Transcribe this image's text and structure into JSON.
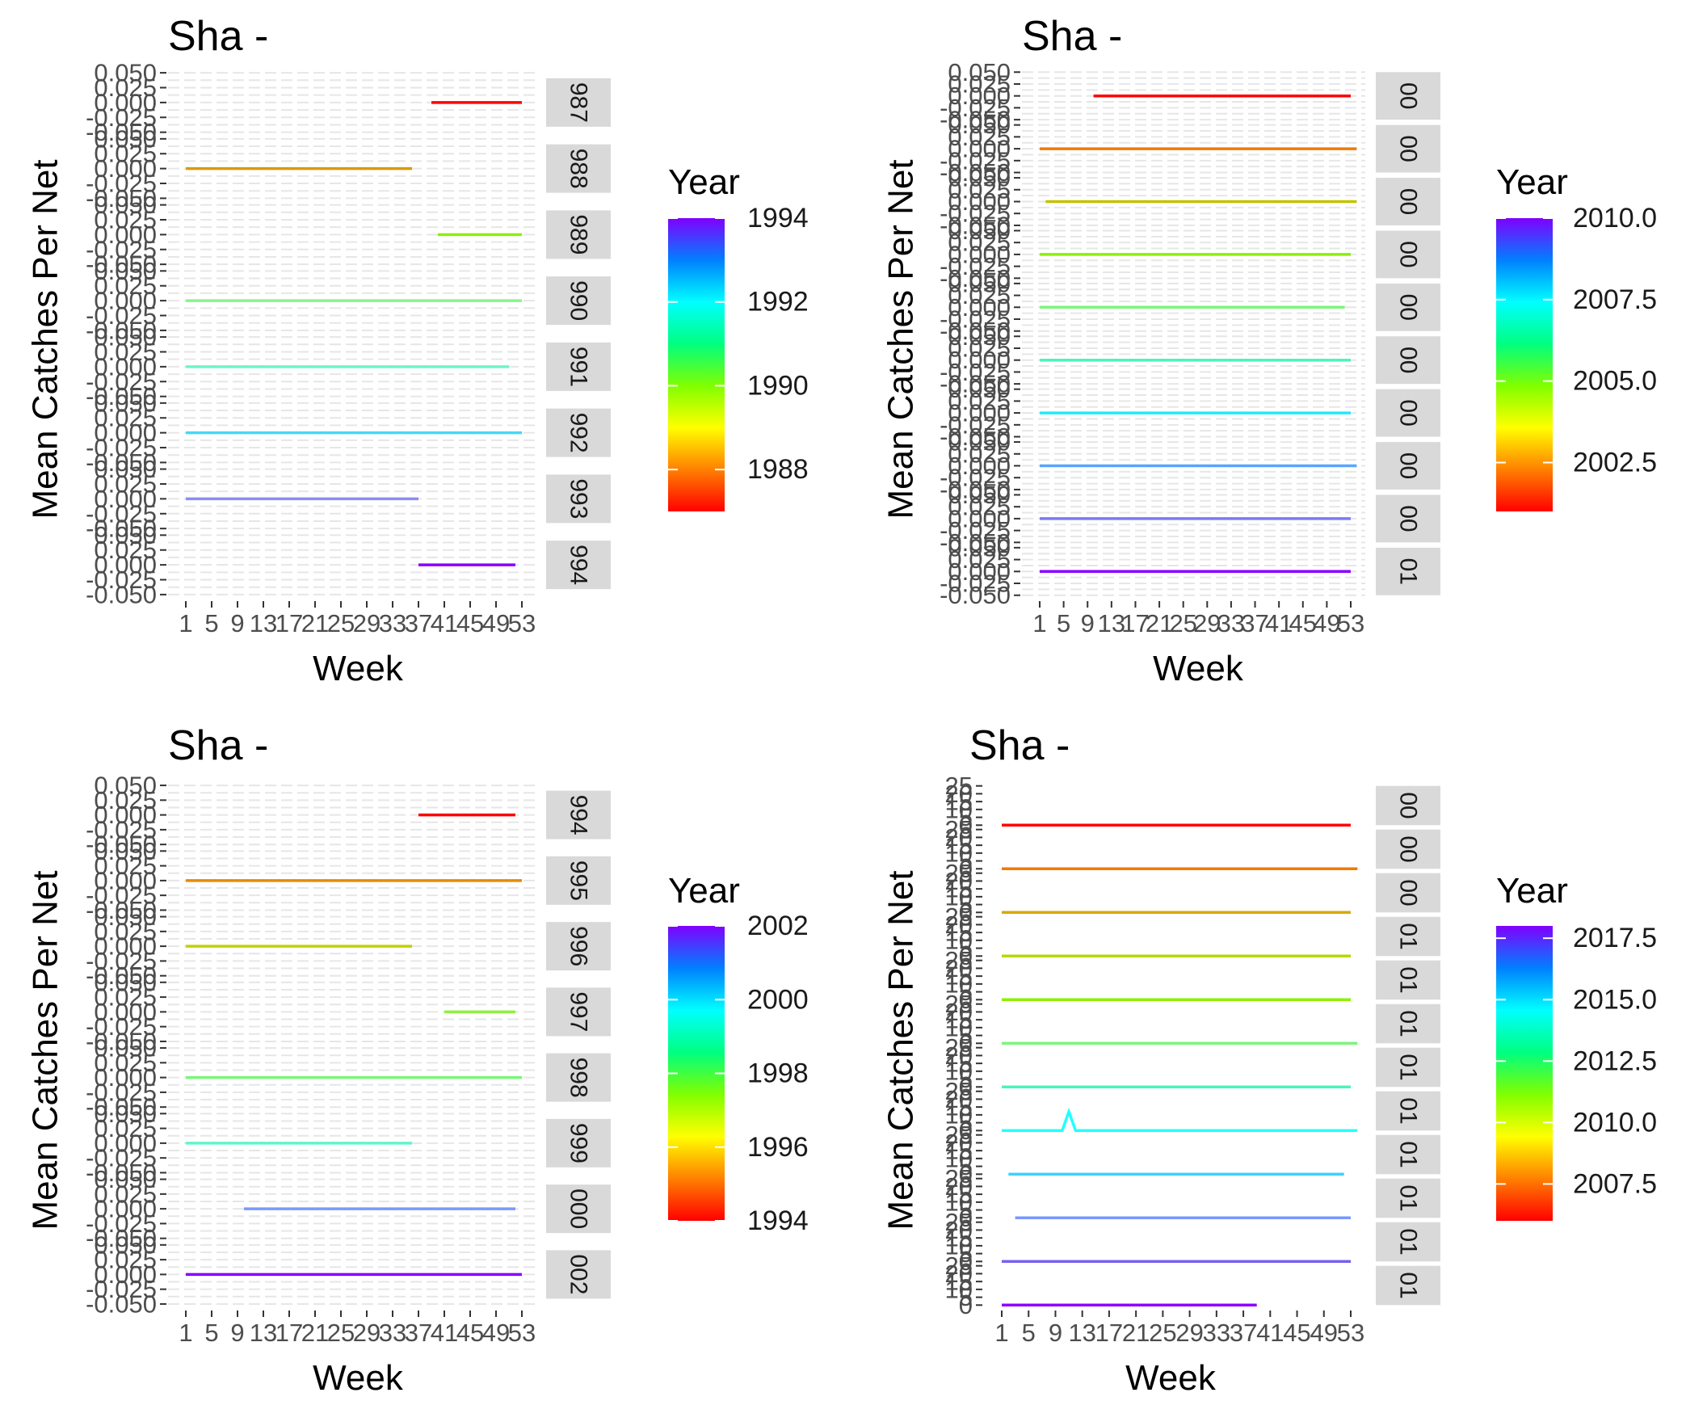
{
  "chart_data": [
    {
      "type": "line",
      "title": "Sha -",
      "xlabel": "Week",
      "ylabel": "Mean Catches Per Net",
      "x_ticks": [
        1,
        5,
        9,
        13,
        17,
        21,
        25,
        29,
        33,
        37,
        41,
        45,
        49,
        53
      ],
      "xlim": [
        1,
        53
      ],
      "y_ticks": [
        -0.05,
        -0.025,
        0.0,
        0.025,
        0.05
      ],
      "y_tick_labels": [
        "-0.050",
        "-0.025",
        "0.000",
        "0.025",
        "0.050"
      ],
      "ylim": [
        -0.05,
        0.05
      ],
      "grid": true,
      "legend": {
        "title": "Year",
        "type": "colorbar",
        "placement": "right",
        "breaks": [
          "1994",
          "1992",
          "1990",
          "1988"
        ],
        "break_values": [
          1994,
          1992,
          1990,
          1988
        ],
        "range": [
          1987,
          1994
        ]
      },
      "series": [
        {
          "strip": "987",
          "year": 1987,
          "color": "#ff0000",
          "x": [
            39,
            53
          ],
          "y": [
            0,
            0
          ]
        },
        {
          "strip": "988",
          "year": 1988,
          "color": "#db9a00",
          "x": [
            1,
            36
          ],
          "y": [
            0,
            0
          ]
        },
        {
          "strip": "989",
          "year": 1989,
          "color": "#8df000",
          "x": [
            40,
            53
          ],
          "y": [
            0,
            0
          ]
        },
        {
          "strip": "990",
          "year": 1990,
          "color": "#88f58a",
          "x": [
            1,
            53
          ],
          "y": [
            0,
            0
          ]
        },
        {
          "strip": "991",
          "year": 1991,
          "color": "#6cf5c9",
          "x": [
            1,
            51
          ],
          "y": [
            0,
            0
          ]
        },
        {
          "strip": "992",
          "year": 1992,
          "color": "#47d8f5",
          "x": [
            1,
            53
          ],
          "y": [
            0,
            0
          ]
        },
        {
          "strip": "993",
          "year": 1993,
          "color": "#8c8cf5",
          "x": [
            1,
            37
          ],
          "y": [
            0,
            0
          ]
        },
        {
          "strip": "994",
          "year": 1994,
          "color": "#8c00ff",
          "x": [
            37,
            52
          ],
          "y": [
            0,
            0
          ]
        }
      ]
    },
    {
      "type": "line",
      "title": "Sha -",
      "xlabel": "Week",
      "ylabel": "Mean Catches Per Net",
      "x_ticks": [
        1,
        5,
        9,
        13,
        17,
        21,
        25,
        29,
        33,
        37,
        41,
        45,
        49,
        53
      ],
      "xlim": [
        1,
        53
      ],
      "y_ticks": [
        -0.05,
        -0.025,
        0.0,
        0.025,
        0.05
      ],
      "y_tick_labels": [
        "-0.050",
        "-0.025",
        "0.000",
        "0.025",
        "0.050"
      ],
      "ylim": [
        -0.05,
        0.05
      ],
      "grid": true,
      "legend": {
        "title": "Year",
        "type": "colorbar",
        "placement": "right",
        "breaks": [
          "2010.0",
          "2007.5",
          "2005.0",
          "2002.5"
        ],
        "break_values": [
          2010,
          2007.5,
          2005,
          2002.5
        ],
        "range": [
          2001,
          2010
        ]
      },
      "series": [
        {
          "strip": "00",
          "year": 2001,
          "color": "#ff0000",
          "x": [
            10,
            53
          ],
          "y": [
            0,
            0
          ]
        },
        {
          "strip": "00",
          "year": 2002,
          "color": "#f07a00",
          "x": [
            1,
            54
          ],
          "y": [
            0,
            0
          ]
        },
        {
          "strip": "00",
          "year": 2003,
          "color": "#c2c200",
          "x": [
            2,
            54
          ],
          "y": [
            0,
            0
          ]
        },
        {
          "strip": "00",
          "year": 2004,
          "color": "#8df000",
          "x": [
            1,
            53
          ],
          "y": [
            0,
            0
          ]
        },
        {
          "strip": "00",
          "year": 2005,
          "color": "#7cf57c",
          "x": [
            1,
            52
          ],
          "y": [
            0,
            0
          ]
        },
        {
          "strip": "00",
          "year": 2006,
          "color": "#48f5bf",
          "x": [
            1,
            53
          ],
          "y": [
            0,
            0
          ]
        },
        {
          "strip": "00",
          "year": 2007,
          "color": "#22e8ff",
          "x": [
            1,
            53
          ],
          "y": [
            0,
            0
          ]
        },
        {
          "strip": "00",
          "year": 2008,
          "color": "#5aa5ff",
          "x": [
            1,
            54
          ],
          "y": [
            0,
            0
          ]
        },
        {
          "strip": "00",
          "year": 2009,
          "color": "#7a7af5",
          "x": [
            1,
            53
          ],
          "y": [
            0,
            0
          ]
        },
        {
          "strip": "01",
          "year": 2010,
          "color": "#8c00ff",
          "x": [
            1,
            53
          ],
          "y": [
            0,
            0
          ]
        }
      ]
    },
    {
      "type": "line",
      "title": "Sha -",
      "xlabel": "Week",
      "ylabel": "Mean Catches Per Net",
      "x_ticks": [
        1,
        5,
        9,
        13,
        17,
        21,
        25,
        29,
        33,
        37,
        41,
        45,
        49,
        53
      ],
      "xlim": [
        1,
        53
      ],
      "y_ticks": [
        -0.05,
        -0.025,
        0.0,
        0.025,
        0.05
      ],
      "y_tick_labels": [
        "-0.050",
        "-0.025",
        "0.000",
        "0.025",
        "0.050"
      ],
      "ylim": [
        -0.05,
        0.05
      ],
      "grid": true,
      "legend": {
        "title": "Year",
        "type": "colorbar",
        "placement": "right",
        "breaks": [
          "2002",
          "2000",
          "1998",
          "1996",
          "1994"
        ],
        "break_values": [
          2002,
          2000,
          1998,
          1996,
          1994
        ],
        "range": [
          1994,
          2002
        ]
      },
      "series": [
        {
          "strip": "994",
          "year": 1994,
          "color": "#ff0000",
          "x": [
            37,
            52
          ],
          "y": [
            0,
            0
          ]
        },
        {
          "strip": "995",
          "year": 1995,
          "color": "#e58c00",
          "x": [
            1,
            53
          ],
          "y": [
            0,
            0
          ]
        },
        {
          "strip": "996",
          "year": 1996,
          "color": "#c2d000",
          "x": [
            1,
            36
          ],
          "y": [
            0,
            0
          ]
        },
        {
          "strip": "997",
          "year": 1997,
          "color": "#8df040",
          "x": [
            41,
            52
          ],
          "y": [
            0,
            0
          ]
        },
        {
          "strip": "998",
          "year": 1998,
          "color": "#7cf57c",
          "x": [
            1,
            53
          ],
          "y": [
            0,
            0
          ]
        },
        {
          "strip": "999",
          "year": 1999,
          "color": "#60f5cc",
          "x": [
            1,
            36
          ],
          "y": [
            0,
            0
          ]
        },
        {
          "strip": "000",
          "year": 2000,
          "color": "#7a98ff",
          "x": [
            10,
            52
          ],
          "y": [
            0,
            0
          ]
        },
        {
          "strip": "002",
          "year": 2002,
          "color": "#8c00ff",
          "x": [
            1,
            53
          ],
          "y": [
            0,
            0
          ]
        }
      ]
    },
    {
      "type": "line",
      "title": "Sha -",
      "xlabel": "Week",
      "ylabel": "Mean Catches Per Net",
      "x_ticks": [
        1,
        5,
        9,
        13,
        17,
        21,
        25,
        29,
        33,
        37,
        41,
        45,
        49,
        53
      ],
      "xlim": [
        1,
        53
      ],
      "y_ticks": [
        0,
        5,
        10,
        15,
        20,
        25
      ],
      "y_tick_labels": [
        "0",
        "5",
        "10",
        "15",
        "20",
        "25"
      ],
      "ylim": [
        0,
        25
      ],
      "grid": false,
      "legend": {
        "title": "Year",
        "type": "colorbar",
        "placement": "right",
        "breaks": [
          "2017.5",
          "2015.0",
          "2012.5",
          "2010.0",
          "2007.5"
        ],
        "break_values": [
          2017.5,
          2015,
          2012.5,
          2010,
          2007.5
        ],
        "range": [
          2006,
          2018
        ]
      },
      "series": [
        {
          "strip": "00",
          "year": 2007,
          "color": "#ff0000",
          "x": [
            1,
            53
          ],
          "y": [
            0,
            0
          ]
        },
        {
          "strip": "00",
          "year": 2008,
          "color": "#f07a00",
          "x": [
            1,
            54
          ],
          "y": [
            0,
            0
          ]
        },
        {
          "strip": "00",
          "year": 2009,
          "color": "#d8aa00",
          "x": [
            1,
            53
          ],
          "y": [
            0,
            0
          ]
        },
        {
          "strip": "01",
          "year": 2010,
          "color": "#b8d800",
          "x": [
            1,
            53
          ],
          "y": [
            0,
            0
          ]
        },
        {
          "strip": "01",
          "year": 2011,
          "color": "#8df000",
          "x": [
            1,
            53
          ],
          "y": [
            0,
            0
          ]
        },
        {
          "strip": "01",
          "year": 2012,
          "color": "#7cf57c",
          "x": [
            1,
            54
          ],
          "y": [
            0,
            0
          ]
        },
        {
          "strip": "01",
          "year": 2013,
          "color": "#48f5bf",
          "x": [
            1,
            53
          ],
          "y": [
            0,
            0
          ]
        },
        {
          "strip": "01",
          "year": 2014,
          "color": "#22ffff",
          "x": [
            1,
            10,
            11,
            12,
            54
          ],
          "y": [
            0,
            0,
            12,
            0,
            0
          ]
        },
        {
          "strip": "01",
          "year": 2015,
          "color": "#40d0ff",
          "x": [
            2,
            52
          ],
          "y": [
            0,
            0
          ]
        },
        {
          "strip": "01",
          "year": 2016,
          "color": "#7a98ff",
          "x": [
            3,
            53
          ],
          "y": [
            0,
            0
          ]
        },
        {
          "strip": "01",
          "year": 2017,
          "color": "#7a60f0",
          "x": [
            1,
            53
          ],
          "y": [
            0,
            0
          ]
        },
        {
          "strip": "01",
          "year": 2018,
          "color": "#8c00ff",
          "x": [
            1,
            39
          ],
          "y": [
            0,
            0
          ]
        }
      ]
    }
  ]
}
